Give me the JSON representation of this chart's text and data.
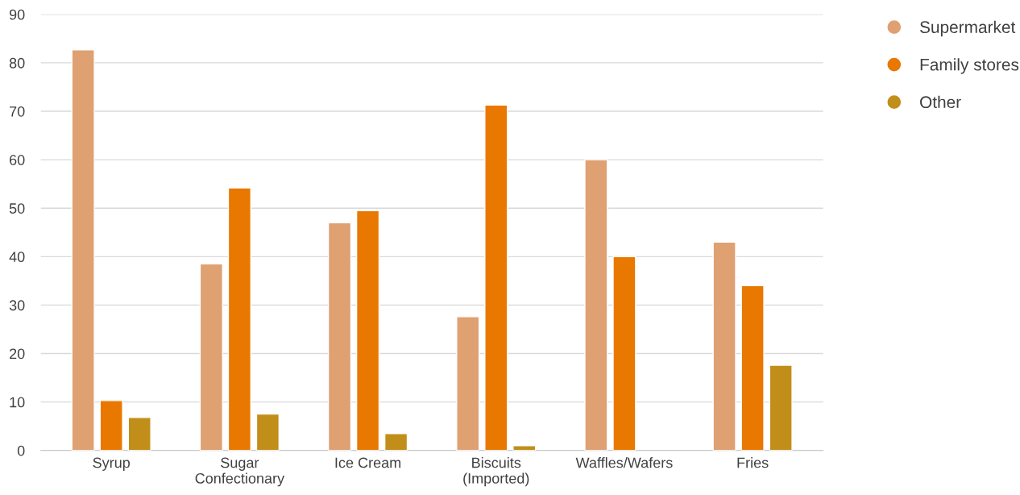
{
  "chart_data": {
    "type": "bar",
    "categories": [
      "Syrup",
      "Sugar\nConfectionary",
      "Ice Cream",
      "Biscuits\n(Imported)",
      "Waffles/Wafers",
      "Fries"
    ],
    "series": [
      {
        "name": "Supermarket",
        "color": "#dfa072",
        "values": [
          82.7,
          38.5,
          47.0,
          27.6,
          60.0,
          43.0
        ]
      },
      {
        "name": "Family stores",
        "color": "#e87800",
        "values": [
          10.3,
          54.2,
          49.5,
          71.3,
          40.0,
          34.0
        ]
      },
      {
        "name": "Other",
        "color": "#c28e1a",
        "values": [
          6.8,
          7.5,
          3.5,
          1.0,
          null,
          17.6
        ]
      }
    ],
    "ylim": [
      0,
      90
    ],
    "yticks": [
      0,
      10,
      20,
      30,
      40,
      50,
      60,
      70,
      80,
      90
    ],
    "grid": "y",
    "legend": "right"
  }
}
